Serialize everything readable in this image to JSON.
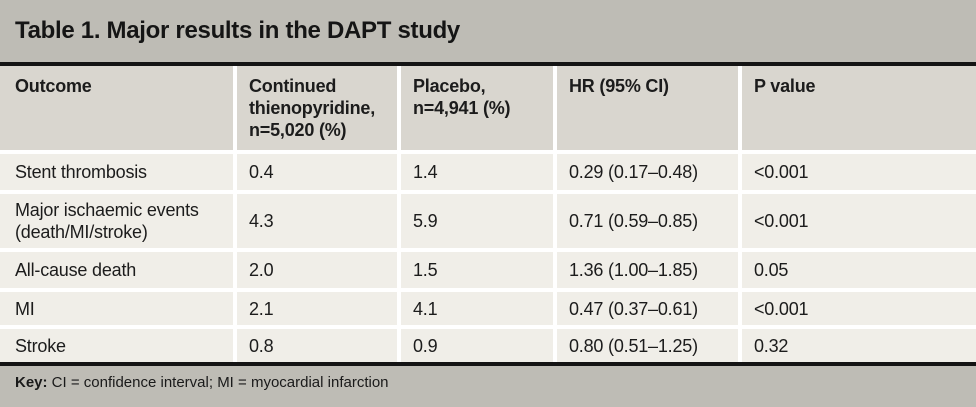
{
  "title": "Table 1. Major results in the DAPT study",
  "table": {
    "columns": [
      "Outcome",
      "Continued thienopyridine, n=5,020 (%)",
      "Placebo, n=4,941 (%)",
      "HR (95% CI)",
      "P value"
    ],
    "rows": [
      {
        "outcome": "Stent thrombosis",
        "continued": "0.4",
        "placebo": "1.4",
        "hr": "0.29 (0.17–0.48)",
        "p": "<0.001"
      },
      {
        "outcome": "Major ischaemic events (death/MI/stroke)",
        "continued": "4.3",
        "placebo": "5.9",
        "hr": "0.71 (0.59–0.85)",
        "p": "<0.001"
      },
      {
        "outcome": "All-cause death",
        "continued": "2.0",
        "placebo": "1.5",
        "hr": "1.36 (1.00–1.85)",
        "p": "0.05"
      },
      {
        "outcome": "MI",
        "continued": "2.1",
        "placebo": "4.1",
        "hr": "0.47 (0.37–0.61)",
        "p": "<0.001"
      },
      {
        "outcome": "Stroke",
        "continued": "0.8",
        "placebo": "0.9",
        "hr": "0.80 (0.51–1.25)",
        "p": "0.32"
      }
    ]
  },
  "footer": {
    "key_label": "Key:",
    "key_text": " CI = confidence interval; MI = myocardial infarction"
  },
  "colors": {
    "outer_gray": "#bebcb5",
    "header_gray": "#d9d6cf",
    "row_cream": "#f0eee8",
    "separator_white": "#ffffff",
    "rule_black": "#141414",
    "text": "#1c1c1c"
  }
}
